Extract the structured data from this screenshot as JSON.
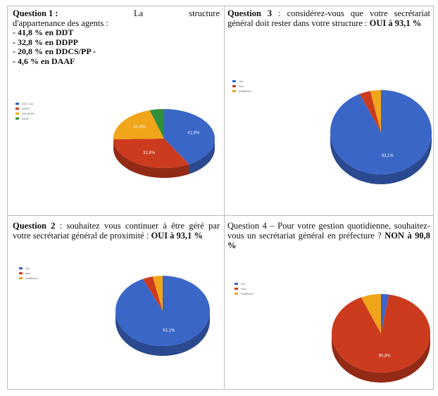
{
  "cells": {
    "q1": {
      "heading": "Question 1 :",
      "line1_tail": "La structure",
      "line2": "d'appartenance des agents :",
      "bullets": [
        "- 41,8 % en DDT",
        "- 32,8 % en DDPP",
        "- 20,8 % en DDCS/PP -",
        "- 4,6 % en DAAF"
      ]
    },
    "q2": {
      "heading": "Question 2",
      "text": " : souhaitez vous continuer à être géré par votre secrétariat général de proximité : ",
      "answer": "OUI à 93,1 %"
    },
    "q3": {
      "heading": "Question 3",
      "text": " : considérez-vous que votre secrétariat général doit rester dans votre structure : ",
      "answer": "OUI à 93,1 %"
    },
    "q4": {
      "heading": "Question 4",
      "text": " – Pour votre gestion quotidienne, souhaitez-vous un secrétariat général en préfecture ? ",
      "answer": "NON à 90,8 %"
    }
  },
  "chart_data": [
    {
      "type": "pie",
      "title": "",
      "categories": [
        "DDT",
        "DDPP",
        "DDCS/PP",
        "DAAF"
      ],
      "values": [
        41.8,
        32.8,
        20.8,
        4.6
      ],
      "colors": [
        "#3a66c8",
        "#cc3b1e",
        "#f1a51a",
        "#2f8f3a"
      ],
      "legend": [
        "DDT (41)",
        "DDPP",
        "DDCS/PP",
        "DAAF"
      ],
      "data_labels": [
        "41,8%",
        "32,8%",
        "20,8%",
        ""
      ]
    },
    {
      "type": "pie",
      "title": "",
      "categories": [
        "Oui",
        "Non",
        "Indifférent"
      ],
      "values": [
        93.1,
        3.5,
        3.4
      ],
      "colors": [
        "#3a66c8",
        "#cc3b1e",
        "#f1a51a"
      ],
      "legend": [
        "Oui",
        "Non",
        "Indifférent"
      ],
      "data_labels": [
        "93,1%",
        "",
        ""
      ]
    },
    {
      "type": "pie",
      "title": "",
      "categories": [
        "Oui",
        "Non",
        "Indifférent"
      ],
      "values": [
        93.1,
        3.5,
        3.4
      ],
      "colors": [
        "#3a66c8",
        "#cc3b1e",
        "#f1a51a"
      ],
      "legend": [
        "Oui",
        "Non",
        "Indifférent"
      ],
      "data_labels": [
        "93,1%",
        "",
        ""
      ]
    },
    {
      "type": "pie",
      "title": "",
      "categories": [
        "Oui",
        "Non",
        "Indifférent"
      ],
      "values": [
        2.6,
        90.8,
        6.6
      ],
      "colors": [
        "#3a66c8",
        "#cc3b1e",
        "#f1a51a"
      ],
      "legend": [
        "Oui",
        "Non",
        "Indifférent"
      ],
      "data_labels": [
        "",
        "90,8%",
        ""
      ]
    }
  ]
}
